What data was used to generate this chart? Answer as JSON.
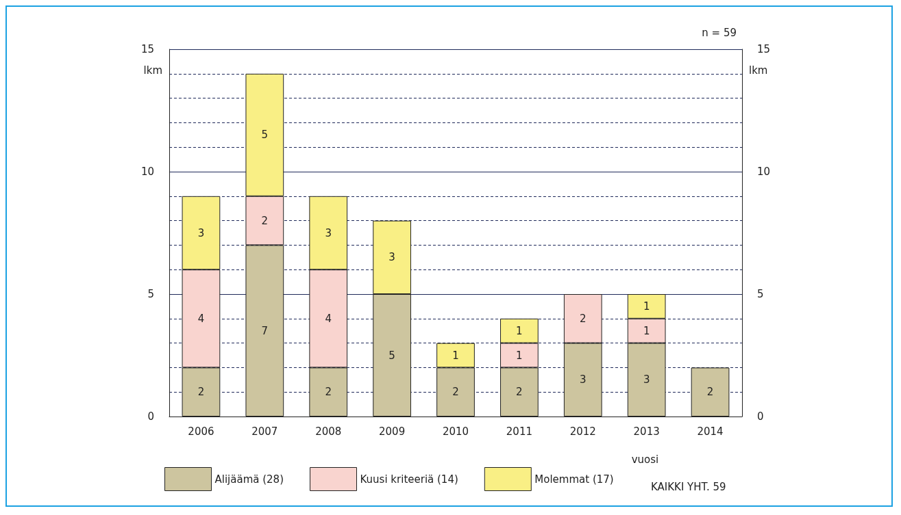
{
  "chart_data": {
    "type": "bar",
    "stacked": true,
    "categories": [
      "2006",
      "2007",
      "2008",
      "2009",
      "2010",
      "2011",
      "2012",
      "2013",
      "2014"
    ],
    "series": [
      {
        "name": "Alijäämä (28)",
        "color": "#cdc59f",
        "values": [
          2,
          7,
          2,
          5,
          2,
          2,
          3,
          3,
          2
        ]
      },
      {
        "name": "Kuusi kriteeriä (14)",
        "color": "#f9d4cf",
        "values": [
          4,
          2,
          4,
          null,
          null,
          1,
          2,
          1,
          null
        ]
      },
      {
        "name": "Molemmat (17)",
        "color": "#f9ef85",
        "values": [
          3,
          5,
          3,
          3,
          1,
          1,
          null,
          1,
          null
        ]
      }
    ],
    "ylim": [
      0,
      15
    ],
    "yticks": [
      0,
      {
        "value": 1,
        "label": null
      },
      {
        "value": 2,
        "label": null
      },
      {
        "value": 3,
        "label": null
      },
      {
        "value": 4,
        "label": null
      },
      5,
      {
        "value": 6,
        "label": null
      },
      {
        "value": 7,
        "label": null
      },
      {
        "value": 8,
        "label": null
      },
      {
        "value": 9,
        "label": null
      },
      10,
      {
        "value": 11,
        "label": null
      },
      {
        "value": 12,
        "label": null
      },
      {
        "value": 13,
        "label": null
      },
      {
        "value": 14,
        "label": null
      },
      15
    ],
    "y2lim": [
      0,
      15
    ],
    "y2ticks": [
      0,
      5,
      10,
      15
    ],
    "ylabel": "lkm",
    "y2label": "lkm",
    "xlabel": "vuosi",
    "annotations": [
      "n = 59",
      "KAIKKI YHT. 59"
    ],
    "data_labels": true,
    "grid": "y",
    "legend": "bottom"
  }
}
